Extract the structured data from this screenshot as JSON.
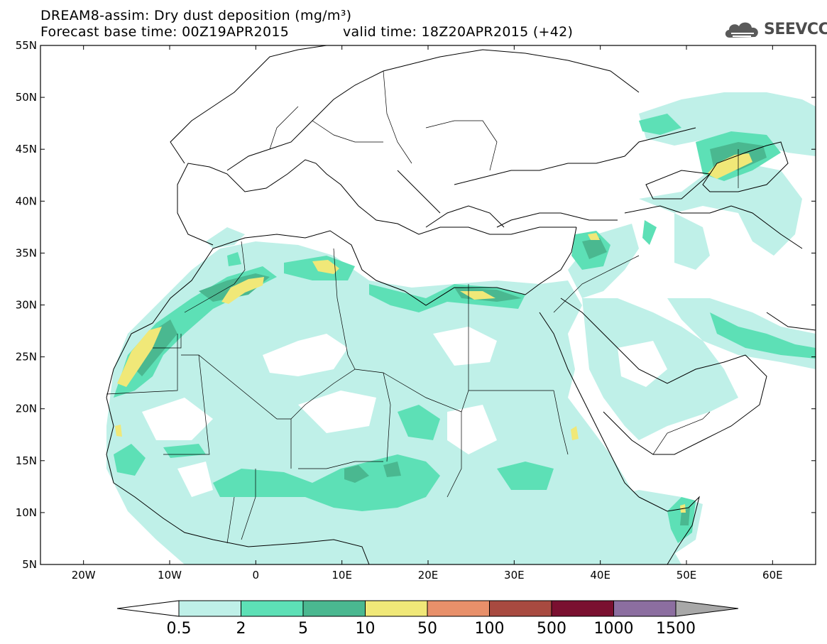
{
  "header": {
    "title_line1": "DREAM8-assim: Dry dust deposition (mg/m³)",
    "title_line2": "Forecast base time: 00Z19APR2015",
    "valid_time": "valid time: 18Z20APR2015 (+42)"
  },
  "logo": {
    "text": "SEEVCCC",
    "icon": "cloud-icon"
  },
  "map": {
    "lon_range": [
      -25,
      65
    ],
    "lat_range": [
      5,
      55
    ],
    "lat_labels": [
      "5N",
      "10N",
      "15N",
      "20N",
      "25N",
      "30N",
      "35N",
      "40N",
      "45N",
      "50N",
      "55N"
    ],
    "lat_values": [
      5,
      10,
      15,
      20,
      25,
      30,
      35,
      40,
      45,
      50,
      55
    ],
    "lon_labels": [
      "20W",
      "10W",
      "0",
      "10E",
      "20E",
      "30E",
      "40E",
      "50E",
      "60E"
    ],
    "lon_values": [
      -20,
      -10,
      0,
      10,
      20,
      30,
      40,
      50,
      60
    ]
  },
  "colorbar": {
    "labels": [
      "0.5",
      "2",
      "5",
      "10",
      "50",
      "100",
      "500",
      "1000",
      "1500"
    ],
    "colors": [
      "#bff0e8",
      "#5de0b6",
      "#4ab890",
      "#f0e878",
      "#e8906a",
      "#a84a40",
      "#7a1030",
      "#8c6ea0"
    ],
    "under_color": "#ffffff",
    "over_color": "#a8a8a8"
  }
}
